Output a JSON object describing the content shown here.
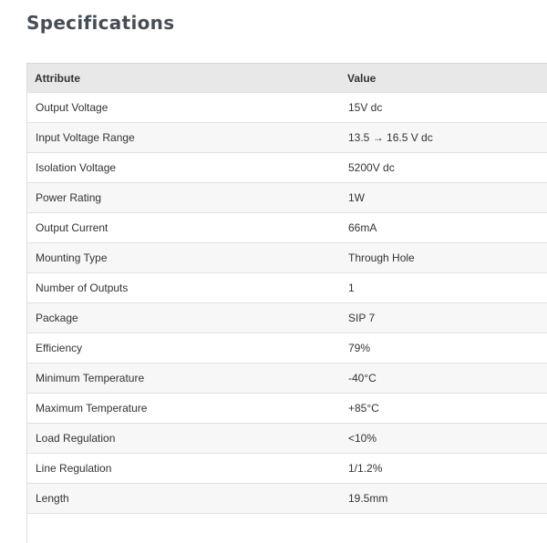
{
  "title": "Specifications",
  "table": {
    "headers": [
      "Attribute",
      "Value"
    ],
    "rows": [
      [
        "Output Voltage",
        "15V dc"
      ],
      [
        "Input Voltage Range",
        "13.5 → 16.5 V dc"
      ],
      [
        "Isolation Voltage",
        "5200V dc"
      ],
      [
        "Power Rating",
        "1W"
      ],
      [
        "Output Current",
        "66mA"
      ],
      [
        "Mounting Type",
        "Through Hole"
      ],
      [
        "Number of Outputs",
        "1"
      ],
      [
        "Package",
        "SIP 7"
      ],
      [
        "Efficiency",
        "79%"
      ],
      [
        "Minimum Temperature",
        "-40°C"
      ],
      [
        "Maximum Temperature",
        "+85°C"
      ],
      [
        "Load Regulation",
        "<10%"
      ],
      [
        "Line Regulation",
        "1/1.2%"
      ],
      [
        "Length",
        "19.5mm"
      ],
      [
        "",
        ""
      ]
    ]
  }
}
